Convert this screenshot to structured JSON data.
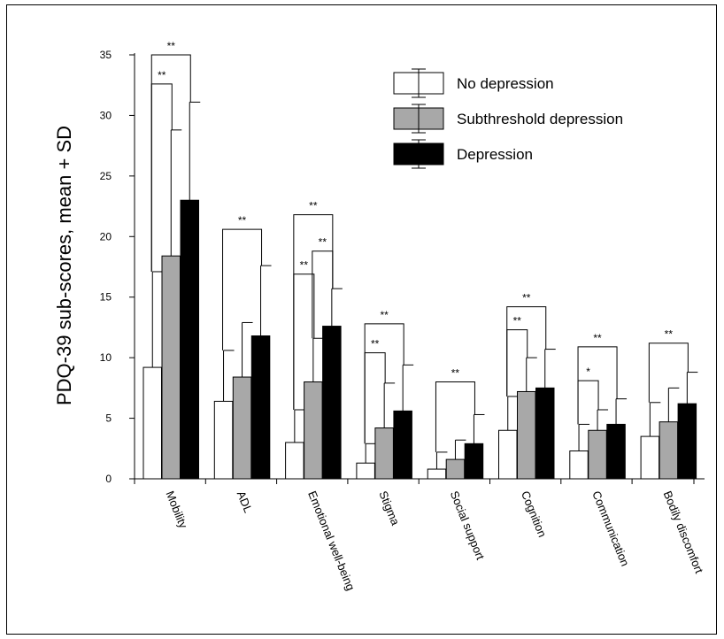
{
  "chart_data": {
    "type": "bar",
    "ylabel": "PDQ-39 sub-scores, mean + SD",
    "ylim": [
      0,
      35
    ],
    "yticks": [
      "0",
      "5",
      "10",
      "15",
      "20",
      "25",
      "30",
      "35"
    ],
    "categories": [
      "Mobility",
      "ADL",
      "Emotional well-being",
      "Stigma",
      "Social support",
      "Cognition",
      "Communication",
      "Bodily discomfort"
    ],
    "series": [
      {
        "name": "No depression",
        "color": "#ffffff",
        "values": [
          9.2,
          6.4,
          3.0,
          1.3,
          0.8,
          4.0,
          2.3,
          3.5
        ],
        "sd": [
          7.9,
          4.2,
          2.7,
          1.6,
          1.4,
          2.8,
          2.2,
          2.8
        ]
      },
      {
        "name": "Subthreshold depression",
        "color": "#a8a8a8",
        "values": [
          18.4,
          8.4,
          8.0,
          4.2,
          1.6,
          7.2,
          4.0,
          4.7
        ],
        "sd": [
          10.4,
          4.5,
          3.6,
          3.7,
          1.6,
          2.8,
          1.7,
          2.8
        ]
      },
      {
        "name": "Depression",
        "color": "#000000",
        "values": [
          23.0,
          11.8,
          12.6,
          5.6,
          2.9,
          7.5,
          4.5,
          6.2
        ],
        "sd": [
          8.1,
          5.8,
          3.1,
          3.8,
          2.4,
          3.2,
          2.1,
          2.6
        ]
      }
    ],
    "legend_position": "top-right",
    "significance": [
      {
        "category": "Mobility",
        "from": 0,
        "to": 1,
        "label": "**",
        "level": 32.6
      },
      {
        "category": "Mobility",
        "from": 0,
        "to": 2,
        "label": "**",
        "level": 35.0
      },
      {
        "category": "ADL",
        "from": 0,
        "to": 2,
        "label": "**",
        "level": 20.6
      },
      {
        "category": "Emotional well-being",
        "from": 0,
        "to": 1,
        "label": "**",
        "level": 16.9
      },
      {
        "category": "Emotional well-being",
        "from": 0,
        "to": 2,
        "label": "**",
        "level": 21.8
      },
      {
        "category": "Emotional well-being",
        "from": 1,
        "to": 2,
        "label": "**",
        "level": 18.8
      },
      {
        "category": "Stigma",
        "from": 0,
        "to": 1,
        "label": "**",
        "level": 10.4
      },
      {
        "category": "Stigma",
        "from": 0,
        "to": 2,
        "label": "**",
        "level": 12.8
      },
      {
        "category": "Social support",
        "from": 0,
        "to": 2,
        "label": "**",
        "level": 8.0
      },
      {
        "category": "Cognition",
        "from": 0,
        "to": 1,
        "label": "**",
        "level": 12.3
      },
      {
        "category": "Cognition",
        "from": 0,
        "to": 2,
        "label": "**",
        "level": 14.2
      },
      {
        "category": "Communication",
        "from": 0,
        "to": 1,
        "label": "*",
        "level": 8.1
      },
      {
        "category": "Communication",
        "from": 0,
        "to": 2,
        "label": "**",
        "level": 10.9
      },
      {
        "category": "Bodily discomfort",
        "from": 0,
        "to": 2,
        "label": "**",
        "level": 11.2
      }
    ]
  }
}
